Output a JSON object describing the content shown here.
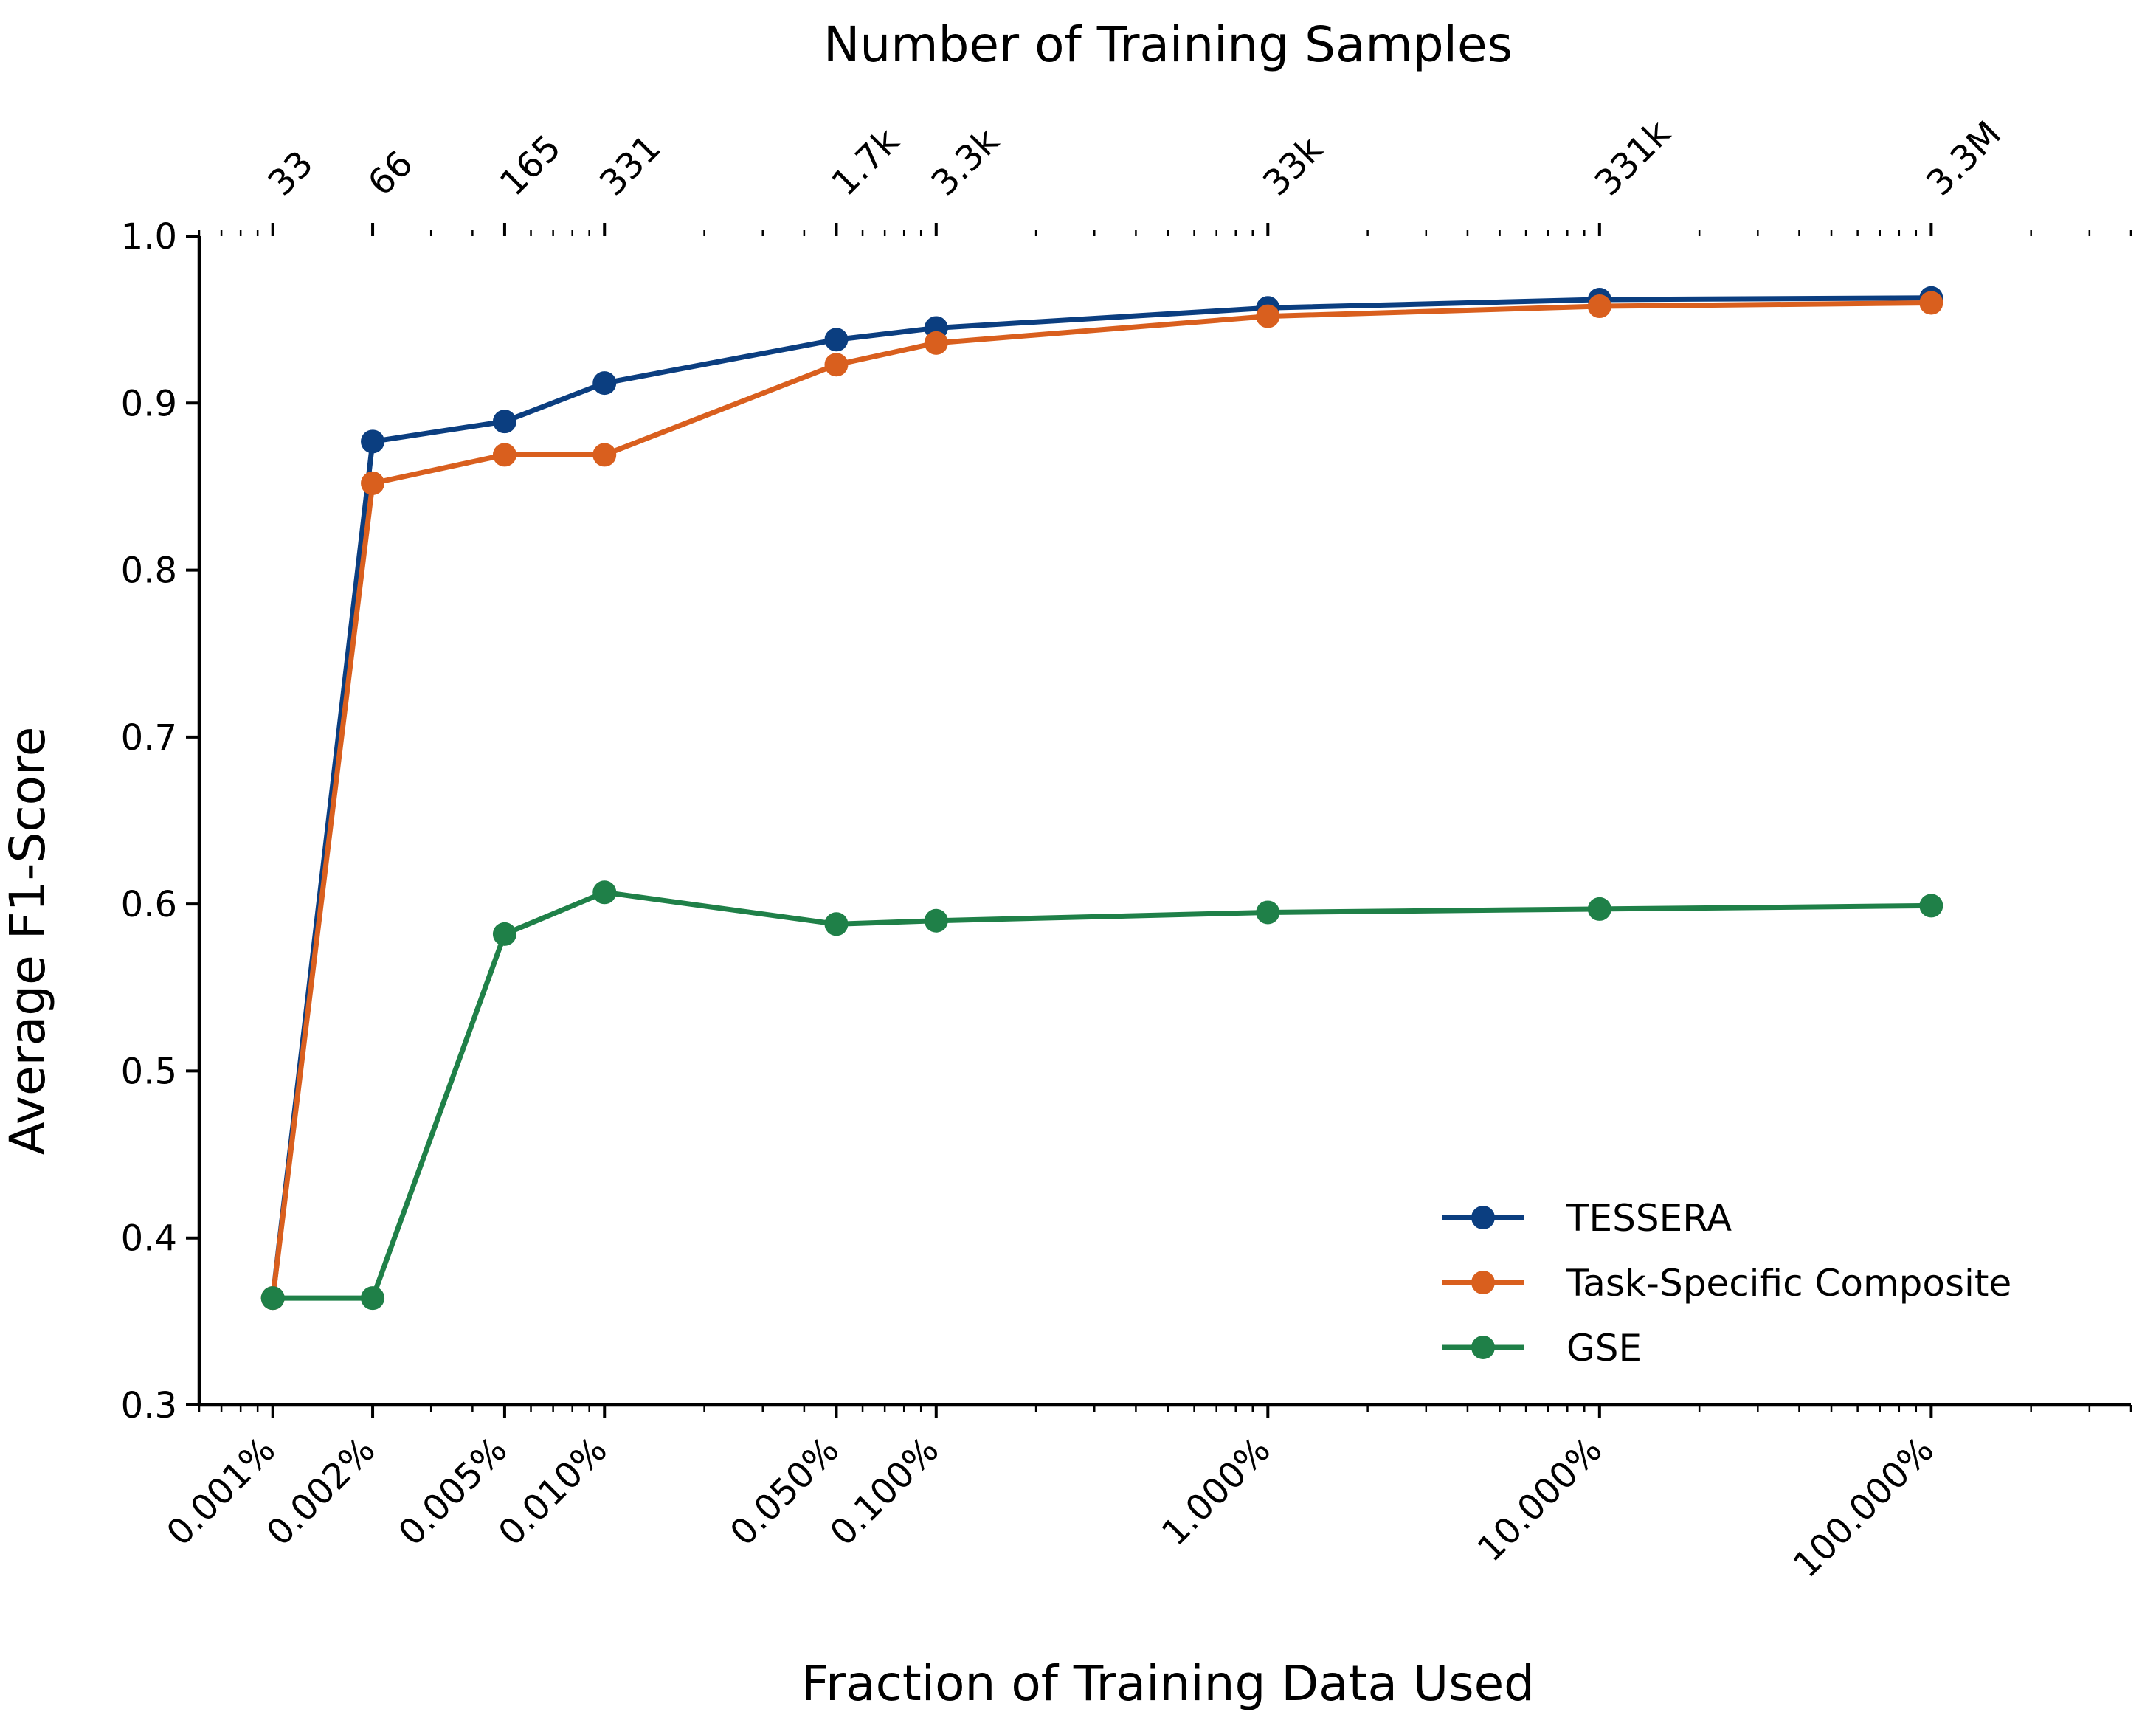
{
  "chart_data": {
    "type": "line",
    "xlabel": "Fraction of Training Data Used",
    "ylabel": "Average F1-Score",
    "top_xlabel": "Number of Training Samples",
    "x_scale": "log",
    "x_unit": "percent",
    "x": [
      0.001,
      0.002,
      0.005,
      0.01,
      0.05,
      0.1,
      1,
      10,
      100
    ],
    "x_tick_labels": [
      "0.001%",
      "0.002%",
      "0.005%",
      "0.010%",
      "0.050%",
      "0.100%",
      "1.000%",
      "10.000%",
      "100.000%"
    ],
    "top_tick_labels": [
      "33",
      "66",
      "165",
      "331",
      "1.7k",
      "3.3k",
      "33k",
      "331k",
      "3.3M"
    ],
    "xlim": [
      0.0006,
      400
    ],
    "ylim": [
      0.3,
      1.0
    ],
    "y_ticks": [
      0.3,
      0.4,
      0.5,
      0.6,
      0.7,
      0.8,
      0.9,
      1.0
    ],
    "y_tick_labels": [
      "0.3",
      "0.4",
      "0.5",
      "0.6",
      "0.7",
      "0.8",
      "0.9",
      "1.0"
    ],
    "grid": false,
    "legend_position": "lower-right",
    "series": [
      {
        "name": "TESSERA",
        "color": "#0b3e80",
        "values": [
          0.364,
          0.877,
          0.889,
          0.912,
          0.938,
          0.945,
          0.957,
          0.962,
          0.963
        ]
      },
      {
        "name": "Task-Specific Composite",
        "color": "#d95f1e",
        "values": [
          0.364,
          0.852,
          0.869,
          0.869,
          0.923,
          0.936,
          0.952,
          0.958,
          0.96
        ]
      },
      {
        "name": "GSE",
        "color": "#1f8048",
        "values": [
          0.364,
          0.364,
          0.582,
          0.607,
          0.588,
          0.59,
          0.595,
          0.597,
          0.599
        ]
      }
    ]
  }
}
